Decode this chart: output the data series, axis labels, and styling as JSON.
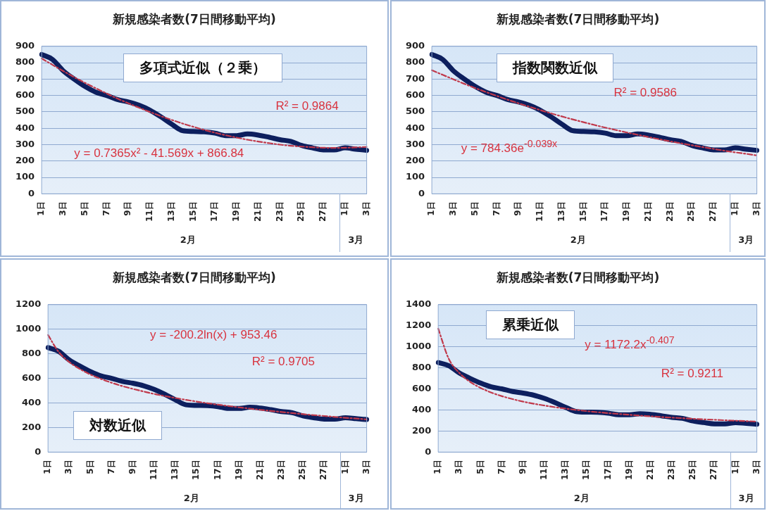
{
  "chart_data": [
    {
      "type": "line",
      "title": "新規感染者数(7日間移動平均)",
      "categories": [
        "1日",
        null,
        "3日",
        null,
        "5日",
        null,
        "7日",
        null,
        "9日",
        null,
        "11日",
        null,
        "13日",
        null,
        "15日",
        null,
        "17日",
        null,
        "19日",
        null,
        "21日",
        null,
        "23日",
        null,
        "25日",
        null,
        "27日",
        null,
        "1日",
        null,
        "3日"
      ],
      "ylim": [
        0,
        900
      ],
      "yticks": [
        0,
        100,
        200,
        300,
        400,
        500,
        600,
        700,
        800,
        900
      ],
      "grid": "y",
      "marker": "none",
      "series": [
        {
          "type": "line",
          "color": "#0d1f5e",
          "line_style": "solid",
          "values": [
            850,
            820,
            750,
            700,
            655,
            620,
            600,
            575,
            560,
            540,
            510,
            470,
            425,
            385,
            380,
            378,
            370,
            355,
            355,
            365,
            358,
            345,
            330,
            320,
            295,
            280,
            268,
            268,
            280,
            272,
            265
          ]
        },
        {
          "type": "line",
          "color": "#c0394b",
          "line_style": "dashed",
          "values": [
            826,
            787,
            749,
            712,
            677,
            644,
            612,
            581,
            552,
            525,
            499,
            474,
            451,
            429,
            409,
            390,
            373,
            357,
            343,
            330,
            319,
            309,
            300,
            293,
            288,
            284,
            281,
            280,
            281,
            283,
            286
          ]
        }
      ],
      "annotations": [
        "多項式近似（２乗）",
        "R² = 0.9864",
        "y = 0.7365x² - 41.569x + 866.84",
        "2月",
        "3月"
      ]
    },
    {
      "type": "line",
      "title": "新規感染者数(7日間移動平均)",
      "categories": [
        "1日",
        null,
        "3日",
        null,
        "5日",
        null,
        "7日",
        null,
        "9日",
        null,
        "11日",
        null,
        "13日",
        null,
        "15日",
        null,
        "17日",
        null,
        "19日",
        null,
        "21日",
        null,
        "23日",
        null,
        "25日",
        null,
        "27日",
        null,
        "1日",
        null,
        "3日"
      ],
      "ylim": [
        0,
        900
      ],
      "yticks": [
        0,
        100,
        200,
        300,
        400,
        500,
        600,
        700,
        800,
        900
      ],
      "grid": "y",
      "marker": "none",
      "series": [
        {
          "type": "line",
          "color": "#0d1f5e",
          "line_style": "solid",
          "values": [
            850,
            820,
            750,
            700,
            655,
            620,
            600,
            575,
            560,
            540,
            510,
            470,
            425,
            385,
            380,
            378,
            370,
            355,
            355,
            365,
            358,
            345,
            330,
            320,
            295,
            280,
            268,
            268,
            280,
            272,
            265
          ]
        },
        {
          "type": "line",
          "color": "#c0394b",
          "line_style": "dashed",
          "values": [
            754,
            726,
            698,
            671,
            645,
            621,
            597,
            574,
            552,
            531,
            511,
            491,
            472,
            454,
            437,
            420,
            404,
            389,
            374,
            360,
            346,
            333,
            320,
            308,
            296,
            285,
            274,
            263,
            253,
            244,
            234
          ]
        }
      ],
      "annotations": [
        "指数関数近似",
        "R² = 0.9586",
        "y = 784.36e$^{-0.039x}$",
        "2月",
        "3月"
      ]
    },
    {
      "type": "line",
      "title": "新規感染者数(7日間移動平均)",
      "categories": [
        "1日",
        null,
        "3日",
        null,
        "5日",
        null,
        "7日",
        null,
        "9日",
        null,
        "11日",
        null,
        "13日",
        null,
        "15日",
        null,
        "17日",
        null,
        "19日",
        null,
        "21日",
        null,
        "23日",
        null,
        "25日",
        null,
        "27日",
        null,
        "1日",
        null,
        "3日"
      ],
      "ylim": [
        0,
        1200
      ],
      "yticks": [
        0,
        200,
        400,
        600,
        800,
        1000,
        1200
      ],
      "grid": "y",
      "marker": "none",
      "series": [
        {
          "type": "line",
          "color": "#0d1f5e",
          "line_style": "solid",
          "values": [
            850,
            820,
            750,
            700,
            655,
            620,
            600,
            575,
            560,
            540,
            510,
            470,
            425,
            385,
            380,
            378,
            370,
            355,
            355,
            365,
            358,
            345,
            330,
            320,
            295,
            280,
            268,
            268,
            280,
            272,
            265
          ]
        },
        {
          "type": "line",
          "color": "#c0394b",
          "line_style": "dashed",
          "values": [
            953,
            815,
            733,
            676,
            631,
            595,
            564,
            537,
            514,
            493,
            473,
            456,
            440,
            425,
            411,
            398,
            386,
            375,
            364,
            354,
            344,
            335,
            326,
            317,
            309,
            301,
            294,
            286,
            279,
            273,
            266
          ]
        }
      ],
      "annotations": [
        "y = -200.2ln(x) + 953.46",
        "R² = 0.9705",
        "対数近似",
        "2月",
        "3月"
      ]
    },
    {
      "type": "line",
      "title": "新規感染者数(7日間移動平均)",
      "categories": [
        "1日",
        null,
        "3日",
        null,
        "5日",
        null,
        "7日",
        null,
        "9日",
        null,
        "11日",
        null,
        "13日",
        null,
        "15日",
        null,
        "17日",
        null,
        "19日",
        null,
        "21日",
        null,
        "23日",
        null,
        "25日",
        null,
        "27日",
        null,
        "1日",
        null,
        "3日"
      ],
      "ylim": [
        0,
        1400
      ],
      "yticks": [
        0,
        200,
        400,
        600,
        800,
        1000,
        1200,
        1400
      ],
      "grid": "y",
      "marker": "none",
      "series": [
        {
          "type": "line",
          "color": "#0d1f5e",
          "line_style": "solid",
          "values": [
            850,
            820,
            750,
            700,
            655,
            620,
            600,
            575,
            560,
            540,
            510,
            470,
            425,
            385,
            380,
            378,
            370,
            355,
            355,
            365,
            358,
            345,
            330,
            320,
            295,
            280,
            268,
            268,
            280,
            272,
            265
          ]
        },
        {
          "type": "line",
          "color": "#c0394b",
          "line_style": "dashed",
          "values": [
            1172,
            884,
            750,
            667,
            609,
            565,
            531,
            503,
            479,
            459,
            442,
            426,
            413,
            400,
            389,
            379,
            370,
            362,
            354,
            346,
            340,
            333,
            327,
            322,
            316,
            311,
            307,
            302,
            298,
            294,
            290
          ]
        }
      ],
      "annotations": [
        "累乗近似",
        "y = 1172.2x$^{-0.407}$",
        "R² = 0.9211",
        "2月",
        "3月"
      ]
    }
  ]
}
